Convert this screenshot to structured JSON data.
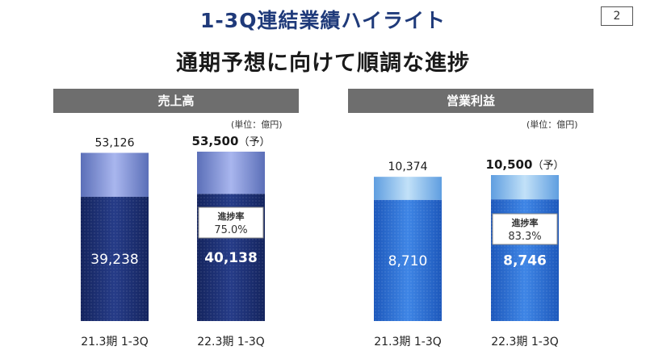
{
  "header": {
    "title": "1-3Q連結業績ハイライト",
    "page_number": "2",
    "subtitle": "通期予想に向けて順調な進捗"
  },
  "chart_data": [
    {
      "type": "bar",
      "title": "売上高",
      "unit": "(単位：億円)",
      "categories": [
        "21.3期 1-3Q",
        "22.3期 1-3Q"
      ],
      "series": [
        {
          "values": [
            39238,
            40138
          ]
        },
        {
          "values": [
            53126,
            53500
          ]
        }
      ],
      "value_labels": {
        "base": [
          "39,238",
          "40,138"
        ],
        "total": [
          "53,126",
          "53,500"
        ]
      },
      "total_suffix": [
        "",
        "（予）"
      ],
      "progress_label": "進捗率",
      "progress_value": "75.0%",
      "base_color": "#1b2d6e",
      "top_color": "#8e9edc"
    },
    {
      "type": "bar",
      "title": "営業利益",
      "unit": "(単位：億円)",
      "categories": [
        "21.3期 1-3Q",
        "22.3期 1-3Q"
      ],
      "series": [
        {
          "values": [
            8710,
            8746
          ]
        },
        {
          "values": [
            10374,
            10500
          ]
        }
      ],
      "value_labels": {
        "base": [
          "8,710",
          "8,746"
        ],
        "total": [
          "10,374",
          "10,500"
        ]
      },
      "total_suffix": [
        "",
        "（予）"
      ],
      "progress_label": "進捗率",
      "progress_value": "83.3%",
      "base_color": "#2f6fd1",
      "top_color": "#9cc6ef"
    }
  ]
}
